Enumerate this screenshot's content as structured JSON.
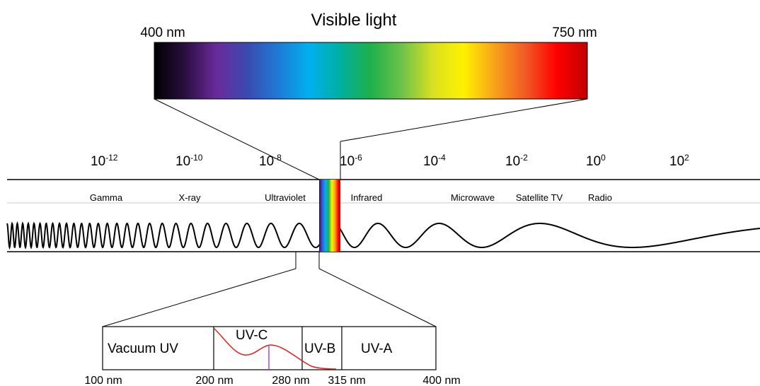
{
  "visible": {
    "title": "Visible light",
    "left_label": "400 nm",
    "right_label": "750 nm",
    "gradient_colors": [
      "#000000",
      "#2a0f40",
      "#6a2a9a",
      "#3a4ab0",
      "#1e7ad6",
      "#00b0ef",
      "#00b0a0",
      "#1fb04a",
      "#6cc24a",
      "#d8e020",
      "#fff200",
      "#f7a21b",
      "#f15a24",
      "#ff0000",
      "#c00000"
    ]
  },
  "scale": {
    "ticks": [
      {
        "base": "10",
        "exp": "-12"
      },
      {
        "base": "10",
        "exp": "-10"
      },
      {
        "base": "10",
        "exp": "-8"
      },
      {
        "base": "10",
        "exp": "-6"
      },
      {
        "base": "10",
        "exp": "-4"
      },
      {
        "base": "10",
        "exp": "-2"
      },
      {
        "base": "10",
        "exp": "0"
      },
      {
        "base": "10",
        "exp": "2"
      }
    ]
  },
  "bands": [
    "Gamma",
    "X-ray",
    "Ultraviolet",
    "Infrared",
    "Microwave",
    "Satellite TV",
    "Radio"
  ],
  "uv": {
    "regions": [
      "Vacuum UV",
      "UV-C",
      "UV-B",
      "UV-A"
    ],
    "wavelengths": [
      "100 nm",
      "200 nm",
      "280 nm",
      "315 nm",
      "400 nm"
    ],
    "curve_color": "#e0201c",
    "marker_color": "#b04ac0"
  }
}
